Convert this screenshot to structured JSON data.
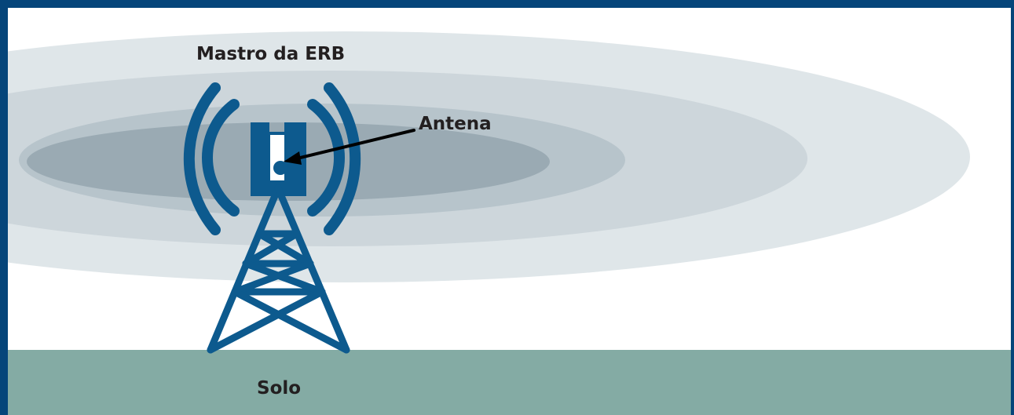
{
  "labels": {
    "mast": "Mastro da ERB",
    "antenna": "Antena",
    "ground": "Solo"
  },
  "colors": {
    "border": "#05457a",
    "tower": "#0d5a8e",
    "ground": "#84aba4",
    "field_outer": "#dfe6e9",
    "field_2": "#cdd6db",
    "field_3": "#b7c4cb",
    "field_inner": "#9aaab3",
    "text": "#231f20",
    "pointer": "#000000"
  },
  "icons": {
    "tower": "cell-tower-icon",
    "signal_waves": "signal-waves-icon",
    "arrow": "arrow-pointer-icon"
  }
}
